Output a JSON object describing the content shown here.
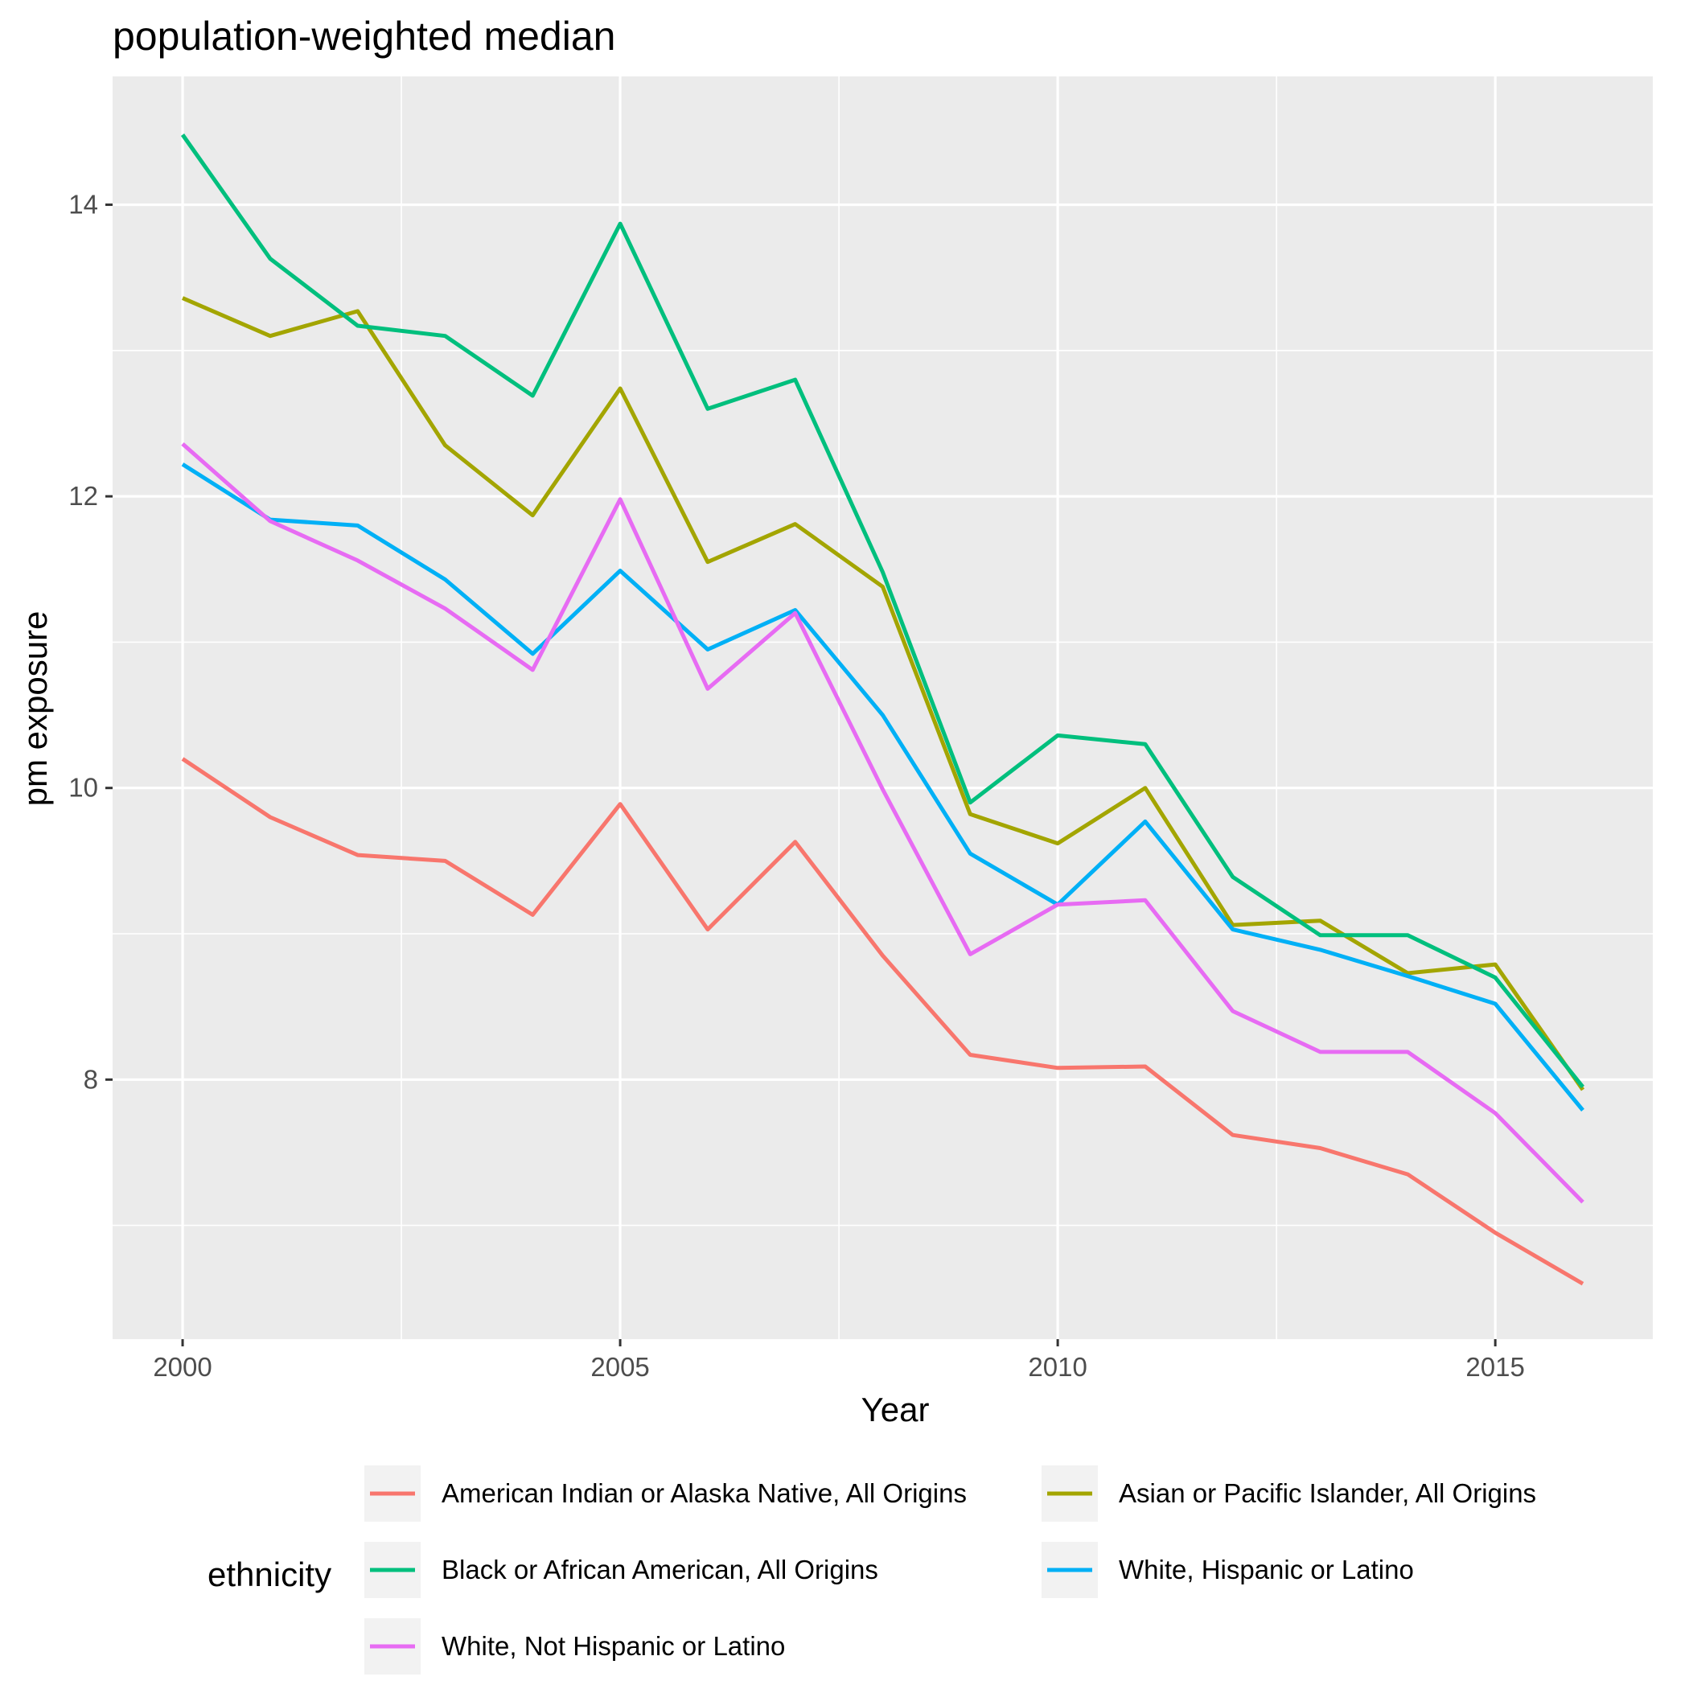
{
  "chart_data": {
    "type": "line",
    "title": "population-weighted median",
    "xlabel": "Year",
    "ylabel": "pm exposure",
    "xlim": [
      1999.2,
      2016.8
    ],
    "ylim": [
      6.22,
      14.88
    ],
    "x_ticks": [
      2000,
      2005,
      2010,
      2015
    ],
    "y_ticks": [
      8,
      10,
      12,
      14
    ],
    "grid": true,
    "legend_position": "bottom",
    "legend_title": "ethnicity",
    "x": [
      2000,
      2001,
      2002,
      2003,
      2004,
      2005,
      2006,
      2007,
      2008,
      2009,
      2010,
      2011,
      2012,
      2013,
      2014,
      2015,
      2016
    ],
    "series": [
      {
        "name": "American Indian or Alaska Native, All Origins",
        "color": "#F8766D",
        "values": [
          10.2,
          9.8,
          9.54,
          9.5,
          9.13,
          9.89,
          9.03,
          9.63,
          8.85,
          8.17,
          8.08,
          8.09,
          7.62,
          7.53,
          7.35,
          6.95,
          6.6
        ]
      },
      {
        "name": "Asian or Pacific Islander, All Origins",
        "color": "#A3A500",
        "values": [
          13.36,
          13.1,
          13.27,
          12.35,
          11.87,
          12.74,
          11.55,
          11.81,
          11.38,
          9.82,
          9.62,
          10.0,
          9.06,
          9.09,
          8.73,
          8.79,
          7.93
        ]
      },
      {
        "name": "Black or African American, All Origins",
        "color": "#00BF7D",
        "values": [
          14.48,
          13.63,
          13.17,
          13.1,
          12.69,
          13.87,
          12.6,
          12.8,
          11.48,
          9.9,
          10.36,
          10.3,
          9.39,
          8.99,
          8.99,
          8.7,
          7.95
        ]
      },
      {
        "name": "White, Hispanic or Latino",
        "color": "#00B0F6",
        "values": [
          12.22,
          11.84,
          11.8,
          11.43,
          10.92,
          11.49,
          10.95,
          11.22,
          10.5,
          9.55,
          9.2,
          9.77,
          9.03,
          8.89,
          8.71,
          8.52,
          7.79
        ]
      },
      {
        "name": "White, Not Hispanic or Latino",
        "color": "#E76BF3",
        "values": [
          12.36,
          11.83,
          11.56,
          11.23,
          10.81,
          11.98,
          10.68,
          11.2,
          9.99,
          8.86,
          9.2,
          9.23,
          8.47,
          8.19,
          8.19,
          7.77,
          7.16
        ]
      }
    ]
  }
}
